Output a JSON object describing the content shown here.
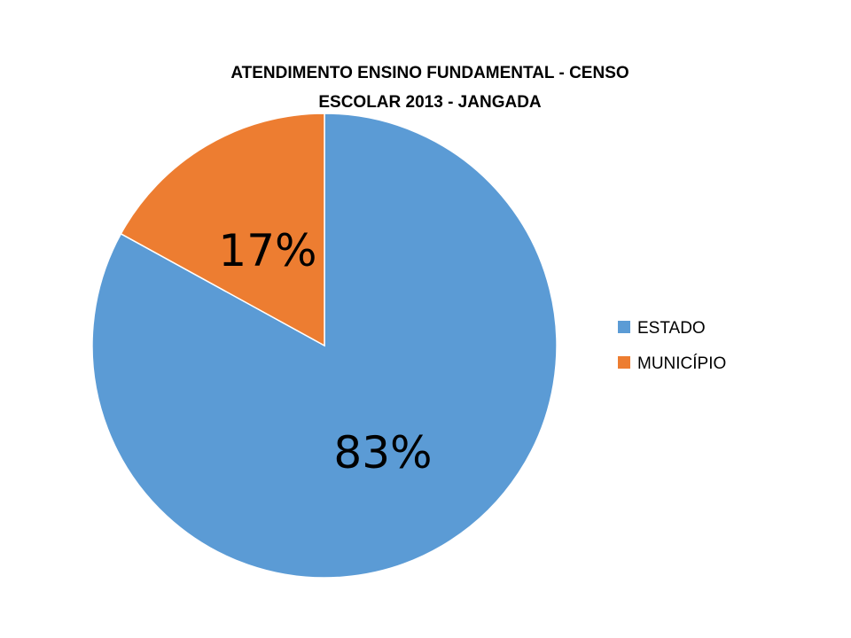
{
  "chart_data": {
    "type": "pie",
    "title_lines": [
      "ATENDIMENTO ENSINO FUNDAMENTAL -  CENSO",
      "ESCOLAR 2013 - JANGADA"
    ],
    "categories": [
      "ESTADO",
      "MUNICÍPIO"
    ],
    "values": [
      83,
      17
    ],
    "data_labels": [
      "83%",
      "17%"
    ],
    "colors": [
      "#5B9BD5",
      "#ED7D31"
    ],
    "legend_position": "right"
  }
}
